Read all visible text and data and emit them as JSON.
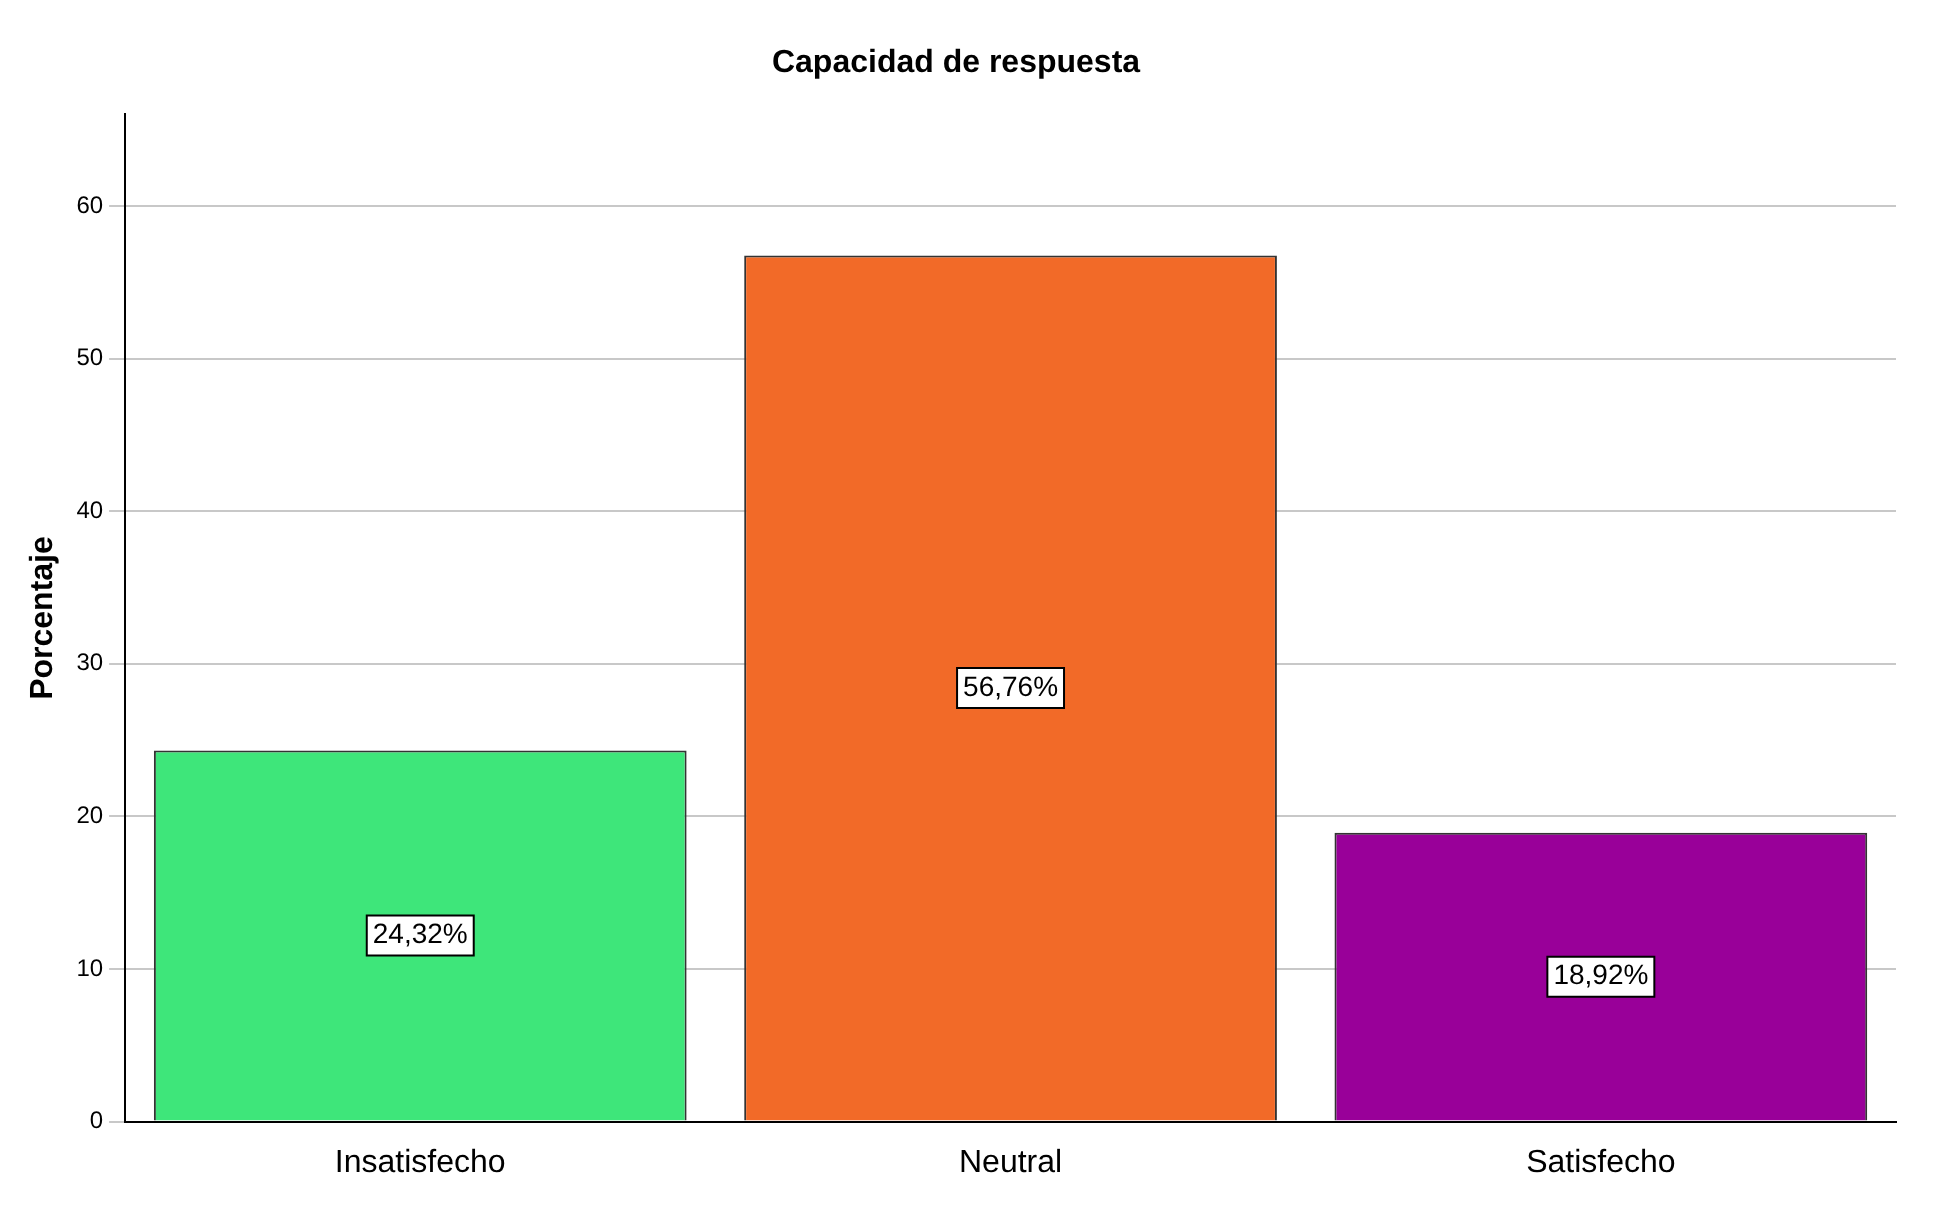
{
  "chart_data": {
    "type": "bar",
    "title": "Capacidad de respuesta",
    "ylabel": "Porcentaje",
    "categories": [
      "Insatisfecho",
      "Neutral",
      "Satisfecho"
    ],
    "values": [
      24.32,
      56.76,
      18.92
    ],
    "colors": [
      "#3ee67a",
      "#f26a28",
      "#990099"
    ],
    "value_labels": [
      "24,32%",
      "56,76%",
      "18,92%"
    ],
    "ylim": [
      0,
      66
    ],
    "yticks": [
      0,
      10,
      20,
      30,
      40,
      50,
      60
    ],
    "grid": "y",
    "legend": false
  }
}
